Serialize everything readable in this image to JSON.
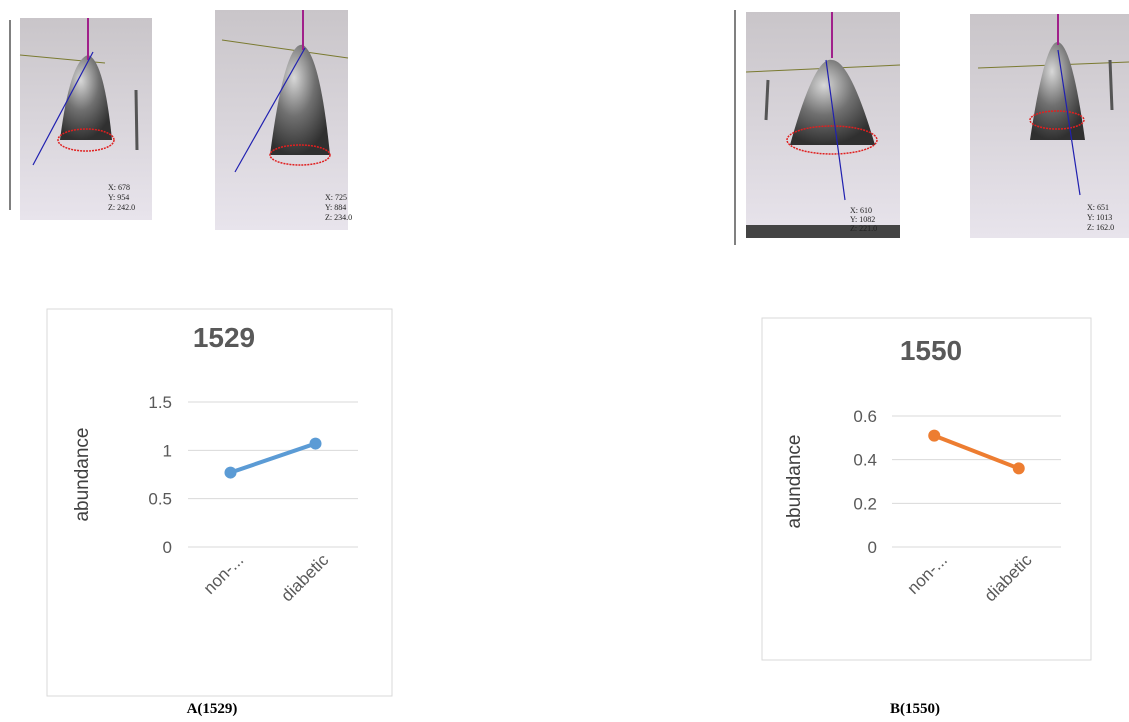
{
  "images": [
    {
      "x": "X: 678",
      "y": "Y: 954",
      "z": "Z: 242.0"
    },
    {
      "x": "X: 725",
      "y": "Y: 884",
      "z": "Z: 234.0"
    },
    {
      "x": "X: 610",
      "y": "Y: 1082",
      "z": "Z: 221.0"
    },
    {
      "x": "X: 651",
      "y": "Y: 1013",
      "z": "Z: 162.0"
    }
  ],
  "chart_data": [
    {
      "type": "line",
      "title": "1529",
      "y_label": "abundance",
      "categories": [
        "non-...",
        "diabetic"
      ],
      "series": [
        {
          "name": "1529",
          "color": "#5b9bd5",
          "values": [
            0.77,
            1.07
          ]
        }
      ],
      "ylim": [
        0,
        1.5
      ],
      "yticks": [
        0,
        0.5,
        1,
        1.5
      ],
      "grid": true
    },
    {
      "type": "line",
      "title": "1550",
      "y_label": "abundance",
      "categories": [
        "non-...",
        "diabetic"
      ],
      "series": [
        {
          "name": "1550",
          "color": "#ed7d31",
          "values": [
            0.51,
            0.36
          ]
        }
      ],
      "ylim": [
        0,
        0.6
      ],
      "yticks": [
        0,
        0.2,
        0.4,
        0.6
      ],
      "grid": true
    }
  ],
  "captions": [
    "A(1529)",
    "B(1550)"
  ]
}
